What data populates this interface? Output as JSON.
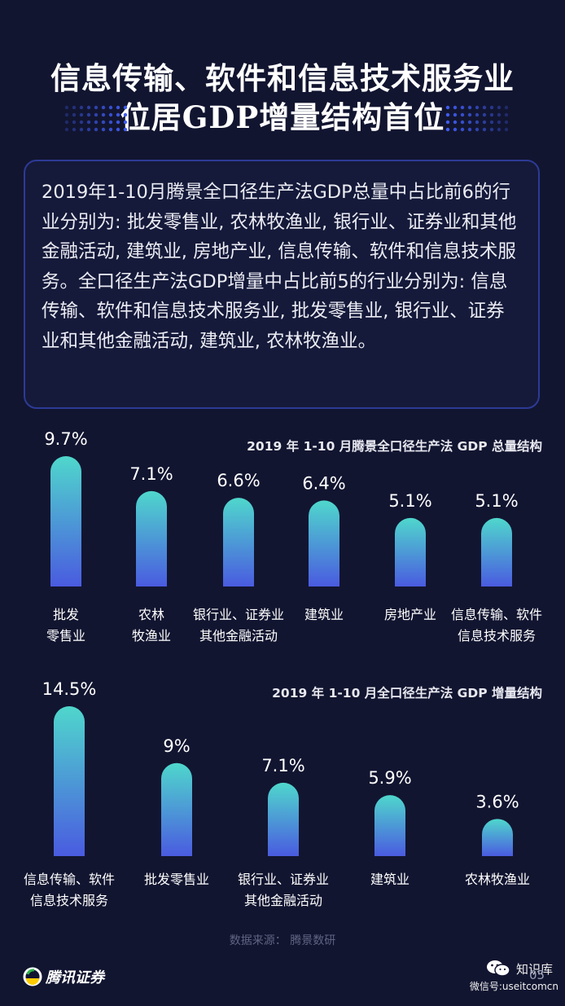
{
  "title": {
    "line1": "信息传输、软件和信息技术服务业",
    "line2": "位居GDP增量结构首位"
  },
  "description": "2019年1-10月腾景全口径生产法GDP总量中占比前6的行业分别为: 批发零售业, 农林牧渔业, 银行业、证券业和其他金融活动, 建筑业, 房地产业, 信息传输、软件和信息技术服务。全口径生产法GDP增量中占比前5的行业分别为: 信息传输、软件和信息技术服务业, 批发零售业, 银行业、证券业和其他金融活动, 建筑业, 农林牧渔业。",
  "chart_data": [
    {
      "type": "bar",
      "title": "2019 年 1-10 月腾景全口径生产法 GDP 总量结构",
      "categories": [
        [
          "批发",
          "零售业"
        ],
        [
          "农林",
          "牧渔业"
        ],
        [
          "银行业、证券业",
          "其他金融活动"
        ],
        [
          "建筑业"
        ],
        [
          "房地产业"
        ],
        [
          "信息传输、软件",
          "信息技术服务"
        ]
      ],
      "values": [
        9.7,
        7.1,
        6.6,
        6.4,
        5.1,
        5.1
      ],
      "value_labels": [
        "9.7%",
        "7.1%",
        "6.6%",
        "6.4%",
        "5.1%",
        "5.1%"
      ],
      "ylim": [
        0,
        9.7
      ],
      "grid": false
    },
    {
      "type": "bar",
      "title": "2019 年 1-10 月全口径生产法 GDP 增量结构",
      "categories": [
        [
          "信息传输、软件",
          "信息技术服务"
        ],
        [
          "批发零售业"
        ],
        [
          "银行业、证券业",
          "其他金融活动"
        ],
        [
          "建筑业"
        ],
        [
          "农林牧渔业"
        ]
      ],
      "values": [
        14.5,
        9,
        7.1,
        5.9,
        3.6
      ],
      "value_labels": [
        "14.5%",
        "9%",
        "7.1%",
        "5.9%",
        "3.6%"
      ],
      "ylim": [
        0,
        14.5
      ],
      "grid": false
    }
  ],
  "source": "数据来源： 腾景数研",
  "logo": {
    "icon": "tencent-logo-icon",
    "name": "腾讯证券"
  },
  "watermark": {
    "icon": "wechat-icon",
    "name": "知识库",
    "id": "微信号:useitcomcn"
  },
  "page_number": "05",
  "colors": {
    "background": "#121530",
    "bar_top": "#4fd7cc",
    "bar_bottom": "#4a5be0",
    "box_border": "#2d3a96"
  }
}
